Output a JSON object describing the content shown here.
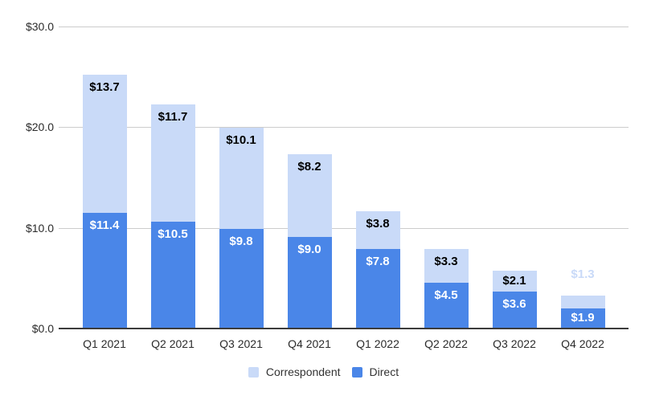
{
  "chart_data": {
    "type": "bar",
    "stacked": true,
    "title": "",
    "xlabel": "",
    "ylabel": "",
    "categories": [
      "Q1 2021",
      "Q2 2021",
      "Q3 2021",
      "Q4 2021",
      "Q1 2022",
      "Q2 2022",
      "Q3 2022",
      "Q4 2022"
    ],
    "series": [
      {
        "name": "Direct",
        "color": "#4a86e8",
        "label_color": "#ffffff",
        "values": [
          11.4,
          10.5,
          9.8,
          9.0,
          7.8,
          4.5,
          3.6,
          1.9
        ],
        "labels": [
          "$11.4",
          "$10.5",
          "$9.8",
          "$9.0",
          "$7.8",
          "$4.5",
          "$3.6",
          "$1.9"
        ],
        "label_outside": [
          false,
          false,
          false,
          false,
          false,
          false,
          false,
          false
        ]
      },
      {
        "name": "Correspondent",
        "color": "#c9daf8",
        "label_color": "#000000",
        "outside_label_color": "#c9daf8",
        "values": [
          13.7,
          11.7,
          10.1,
          8.2,
          3.8,
          3.3,
          2.1,
          1.3
        ],
        "labels": [
          "$13.7",
          "$11.7",
          "$10.1",
          "$8.2",
          "$3.8",
          "$3.3",
          "$2.1",
          "$1.3"
        ],
        "label_outside": [
          false,
          false,
          false,
          false,
          false,
          false,
          false,
          true
        ]
      }
    ],
    "y_axis": {
      "range": [
        0,
        30
      ],
      "ticks": [
        {
          "value": 0,
          "label": "$0.0"
        },
        {
          "value": 10,
          "label": "$10.0"
        },
        {
          "value": 20,
          "label": "$20.0"
        },
        {
          "value": 30,
          "label": "$30.0"
        }
      ]
    },
    "grid": true,
    "legend": {
      "position": "bottom",
      "items": [
        {
          "label": "Correspondent",
          "color": "#c9daf8"
        },
        {
          "label": "Direct",
          "color": "#4a86e8"
        }
      ]
    },
    "colors": {
      "background": "#ffffff",
      "grid": "#cccccc",
      "axis": "#3c3c3c",
      "tick_text": "#2b2b2b",
      "legend_text": "#333333"
    }
  }
}
